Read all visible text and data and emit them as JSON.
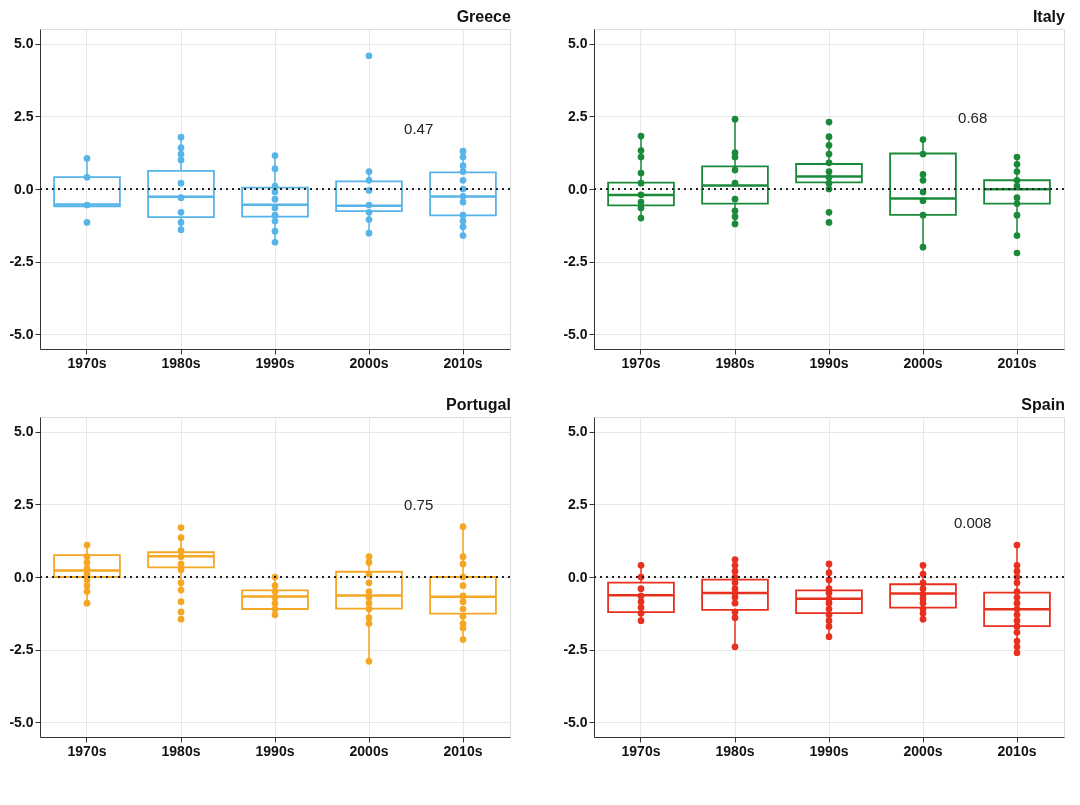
{
  "chart_data": [
    {
      "type": "box",
      "title": "Greece",
      "categories": [
        "1970s",
        "1980s",
        "1990s",
        "2000s",
        "2010s"
      ],
      "ylim": [
        -5.5,
        5.5
      ],
      "yticks": [
        {
          "value": -5,
          "label": "-5.0"
        },
        {
          "value": -2.5,
          "label": "-2.5"
        },
        {
          "value": 0,
          "label": "0.0"
        },
        {
          "value": 2.5,
          "label": "2.5"
        },
        {
          "value": 5,
          "label": "5.0"
        }
      ],
      "grid": true,
      "ref_lines": [
        {
          "axis": "y",
          "value": 0,
          "line_style": "dotted"
        }
      ],
      "annotations": [
        "0.47"
      ],
      "series": [
        {
          "type": "box",
          "color": "#56b4e9",
          "boxes": [
            {
              "low": -0.6,
              "q1": -0.6,
              "median": -0.53,
              "q3": 0.41,
              "high": 1.03
            },
            {
              "low": -1.4,
              "q1": -0.97,
              "median": -0.27,
              "q3": 0.62,
              "high": 1.75
            },
            {
              "low": -1.83,
              "q1": -0.95,
              "median": -0.54,
              "q3": 0.05,
              "high": 1.15
            },
            {
              "low": -1.52,
              "q1": -0.76,
              "median": -0.58,
              "q3": 0.26,
              "high": 0.6
            },
            {
              "low": -1.6,
              "q1": -0.91,
              "median": -0.26,
              "q3": 0.57,
              "high": 1.3
            }
          ]
        },
        {
          "type": "scatter",
          "color": "#56b4e9",
          "x": [
            "1970s",
            "1970s",
            "1970s",
            "1970s",
            "1980s",
            "1980s",
            "1980s",
            "1980s",
            "1980s",
            "1980s",
            "1980s",
            "1980s",
            "1980s",
            "1990s",
            "1990s",
            "1990s",
            "1990s",
            "1990s",
            "1990s",
            "1990s",
            "1990s",
            "1990s",
            "1990s",
            "2000s",
            "2000s",
            "2000s",
            "2000s",
            "2000s",
            "2000s",
            "2000s",
            "2000s",
            "2010s",
            "2010s",
            "2010s",
            "2010s",
            "2010s",
            "2010s",
            "2010s",
            "2010s",
            "2010s",
            "2010s",
            "2010s",
            "2010s"
          ],
          "values": [
            1.05,
            0.4,
            -0.55,
            -1.15,
            1.78,
            1.42,
            1.2,
            1.0,
            0.2,
            -0.3,
            -0.8,
            -1.15,
            -1.4,
            1.15,
            0.7,
            0.1,
            -0.1,
            -0.35,
            -0.65,
            -0.9,
            -1.1,
            -1.45,
            -1.83,
            4.58,
            0.6,
            0.3,
            -0.05,
            -0.55,
            -0.8,
            -1.05,
            -1.52,
            1.3,
            1.1,
            0.8,
            0.6,
            0.3,
            0.0,
            -0.25,
            -0.45,
            -0.9,
            -1.1,
            -1.3,
            -1.6
          ]
        }
      ]
    },
    {
      "type": "box",
      "title": "Italy",
      "categories": [
        "1970s",
        "1980s",
        "1990s",
        "2000s",
        "2010s"
      ],
      "ylim": [
        -5.5,
        5.5
      ],
      "yticks": [
        {
          "value": -5,
          "label": "-5.0"
        },
        {
          "value": -2.5,
          "label": "-2.5"
        },
        {
          "value": 0,
          "label": "0.0"
        },
        {
          "value": 2.5,
          "label": "2.5"
        },
        {
          "value": 5,
          "label": "5.0"
        }
      ],
      "grid": true,
      "ref_lines": [
        {
          "axis": "y",
          "value": 0,
          "line_style": "dotted"
        }
      ],
      "annotations": [
        "0.68"
      ],
      "series": [
        {
          "type": "box",
          "color": "#1a8a3a",
          "boxes": [
            {
              "low": -1.0,
              "q1": -0.56,
              "median": -0.21,
              "q3": 0.22,
              "high": 1.81
            },
            {
              "low": -1.22,
              "q1": -0.5,
              "median": 0.12,
              "q3": 0.78,
              "high": 2.36
            },
            {
              "low": 0.0,
              "q1": 0.23,
              "median": 0.43,
              "q3": 0.86,
              "high": 1.8
            },
            {
              "low": -2.0,
              "q1": -0.89,
              "median": -0.33,
              "q3": 1.22,
              "high": 1.7
            },
            {
              "low": -1.65,
              "q1": -0.5,
              "median": -0.01,
              "q3": 0.3,
              "high": 1.1
            }
          ]
        },
        {
          "type": "scatter",
          "color": "#1a8a3a",
          "x": [
            "1970s",
            "1970s",
            "1970s",
            "1970s",
            "1970s",
            "1970s",
            "1970s",
            "1970s",
            "1970s",
            "1980s",
            "1980s",
            "1980s",
            "1980s",
            "1980s",
            "1980s",
            "1980s",
            "1980s",
            "1980s",
            "1990s",
            "1990s",
            "1990s",
            "1990s",
            "1990s",
            "1990s",
            "1990s",
            "1990s",
            "1990s",
            "1990s",
            "1990s",
            "2000s",
            "2000s",
            "2000s",
            "2000s",
            "2000s",
            "2000s",
            "2000s",
            "2000s",
            "2010s",
            "2010s",
            "2010s",
            "2010s",
            "2010s",
            "2010s",
            "2010s",
            "2010s",
            "2010s",
            "2010s"
          ],
          "values": [
            1.82,
            1.32,
            1.1,
            0.55,
            0.2,
            -0.2,
            -0.45,
            -0.65,
            -1.0,
            2.4,
            1.25,
            1.1,
            0.65,
            0.2,
            -0.35,
            -0.75,
            -0.95,
            -1.2,
            2.3,
            1.8,
            1.5,
            1.2,
            0.9,
            0.6,
            0.4,
            0.2,
            0.0,
            -0.8,
            -1.15,
            1.7,
            1.2,
            0.5,
            0.3,
            -0.1,
            -0.4,
            -0.9,
            -2.0,
            1.1,
            0.85,
            0.6,
            0.3,
            0.1,
            -0.3,
            -0.5,
            -0.9,
            -1.6,
            -2.2
          ]
        }
      ]
    },
    {
      "type": "box",
      "title": "Portugal",
      "categories": [
        "1970s",
        "1980s",
        "1990s",
        "2000s",
        "2010s"
      ],
      "ylim": [
        -5.5,
        5.5
      ],
      "yticks": [
        {
          "value": -5,
          "label": "-5.0"
        },
        {
          "value": -2.5,
          "label": "-2.5"
        },
        {
          "value": 0,
          "label": "0.0"
        },
        {
          "value": 2.5,
          "label": "2.5"
        },
        {
          "value": 5,
          "label": "5.0"
        }
      ],
      "grid": true,
      "ref_lines": [
        {
          "axis": "y",
          "value": 0,
          "line_style": "dotted"
        }
      ],
      "annotations": [
        "0.75"
      ],
      "series": [
        {
          "type": "box",
          "color": "#f5a623",
          "boxes": [
            {
              "low": -0.9,
              "q1": 0.0,
              "median": 0.22,
              "q3": 0.75,
              "high": 1.1
            },
            {
              "low": -0.45,
              "q1": 0.33,
              "median": 0.71,
              "q3": 0.85,
              "high": 1.35
            },
            {
              "low": -1.3,
              "q1": -1.1,
              "median": -0.67,
              "q3": -0.46,
              "high": 0.0
            },
            {
              "low": -2.85,
              "q1": -1.09,
              "median": -0.64,
              "q3": 0.18,
              "high": 0.7
            },
            {
              "low": -2.15,
              "q1": -1.26,
              "median": -0.68,
              "q3": 0.0,
              "high": 1.73
            }
          ]
        },
        {
          "type": "scatter",
          "color": "#f5a623",
          "x": [
            "1970s",
            "1970s",
            "1970s",
            "1970s",
            "1970s",
            "1970s",
            "1970s",
            "1970s",
            "1970s",
            "1980s",
            "1980s",
            "1980s",
            "1980s",
            "1980s",
            "1980s",
            "1980s",
            "1980s",
            "1980s",
            "1980s",
            "1980s",
            "1990s",
            "1990s",
            "1990s",
            "1990s",
            "1990s",
            "1990s",
            "1990s",
            "2000s",
            "2000s",
            "2000s",
            "2000s",
            "2000s",
            "2000s",
            "2000s",
            "2000s",
            "2000s",
            "2000s",
            "2000s",
            "2010s",
            "2010s",
            "2010s",
            "2010s",
            "2010s",
            "2010s",
            "2010s",
            "2010s",
            "2010s",
            "2010s",
            "2010s",
            "2010s"
          ],
          "values": [
            1.1,
            0.7,
            0.5,
            0.3,
            0.1,
            -0.1,
            -0.3,
            -0.5,
            -0.9,
            1.7,
            1.35,
            0.9,
            0.7,
            0.45,
            0.25,
            -0.2,
            -0.45,
            -0.85,
            -1.2,
            -1.45,
            0.0,
            -0.3,
            -0.5,
            -0.7,
            -0.9,
            -1.1,
            -1.3,
            0.7,
            0.5,
            0.1,
            -0.2,
            -0.5,
            -0.7,
            -0.9,
            -1.1,
            -1.4,
            -1.6,
            -2.9,
            1.73,
            0.7,
            0.45,
            0.0,
            -0.3,
            -0.65,
            -0.85,
            -1.1,
            -1.35,
            -1.6,
            -1.75,
            -2.15
          ]
        }
      ]
    },
    {
      "type": "box",
      "title": "Spain",
      "categories": [
        "1970s",
        "1980s",
        "1990s",
        "2000s",
        "2010s"
      ],
      "ylim": [
        -5.5,
        5.5
      ],
      "yticks": [
        {
          "value": -5,
          "label": "-5.0"
        },
        {
          "value": -2.5,
          "label": "-2.5"
        },
        {
          "value": 0,
          "label": "0.0"
        },
        {
          "value": 2.5,
          "label": "2.5"
        },
        {
          "value": 5,
          "label": "5.0"
        }
      ],
      "grid": true,
      "ref_lines": [
        {
          "axis": "y",
          "value": 0,
          "line_style": "dotted"
        }
      ],
      "annotations": [
        "0.008"
      ],
      "series": [
        {
          "type": "box",
          "color": "#e8301e",
          "boxes": [
            {
              "low": -1.5,
              "q1": -1.21,
              "median": -0.63,
              "q3": -0.19,
              "high": 0.4
            },
            {
              "low": -2.4,
              "q1": -1.13,
              "median": -0.55,
              "q3": -0.09,
              "high": 0.6
            },
            {
              "low": -2.05,
              "q1": -1.24,
              "median": -0.75,
              "q3": -0.46,
              "high": 0.45
            },
            {
              "low": -1.45,
              "q1": -1.05,
              "median": -0.57,
              "q3": -0.25,
              "high": 0.4
            },
            {
              "low": -2.6,
              "q1": -1.69,
              "median": -1.11,
              "q3": -0.54,
              "high": 1.1
            }
          ]
        },
        {
          "type": "scatter",
          "color": "#e8301e",
          "x": [
            "1970s",
            "1970s",
            "1970s",
            "1970s",
            "1970s",
            "1970s",
            "1970s",
            "1970s",
            "1980s",
            "1980s",
            "1980s",
            "1980s",
            "1980s",
            "1980s",
            "1980s",
            "1980s",
            "1980s",
            "1980s",
            "1980s",
            "1980s",
            "1990s",
            "1990s",
            "1990s",
            "1990s",
            "1990s",
            "1990s",
            "1990s",
            "1990s",
            "1990s",
            "1990s",
            "1990s",
            "1990s",
            "2000s",
            "2000s",
            "2000s",
            "2000s",
            "2000s",
            "2000s",
            "2000s",
            "2000s",
            "2000s",
            "2000s",
            "2010s",
            "2010s",
            "2010s",
            "2010s",
            "2010s",
            "2010s",
            "2010s",
            "2010s",
            "2010s",
            "2010s",
            "2010s",
            "2010s",
            "2010s",
            "2010s",
            "2010s",
            "2010s"
          ],
          "values": [
            0.4,
            0.0,
            -0.4,
            -0.65,
            -0.85,
            -1.05,
            -1.25,
            -1.5,
            0.6,
            0.4,
            0.2,
            0.0,
            -0.2,
            -0.4,
            -0.55,
            -0.7,
            -0.9,
            -1.2,
            -1.4,
            -2.4,
            0.45,
            0.15,
            -0.1,
            -0.4,
            -0.55,
            -0.75,
            -0.9,
            -1.1,
            -1.3,
            -1.5,
            -1.7,
            -2.05,
            0.4,
            0.1,
            -0.2,
            -0.4,
            -0.6,
            -0.75,
            -0.9,
            -1.1,
            -1.25,
            -1.45,
            1.1,
            0.4,
            0.2,
            0.0,
            -0.2,
            -0.5,
            -0.7,
            -0.9,
            -1.1,
            -1.3,
            -1.5,
            -1.7,
            -1.9,
            -2.2,
            -2.4,
            -2.6
          ]
        }
      ]
    }
  ]
}
